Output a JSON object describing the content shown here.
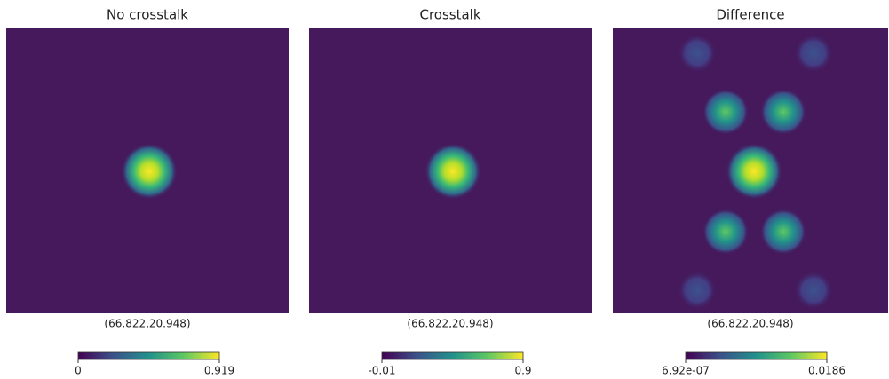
{
  "chart_data": [
    {
      "type": "heatmap",
      "title": "No crosstalk",
      "xlabel": "(66.822,20.948)",
      "clim": [
        0,
        0.919
      ],
      "cticks": [
        0,
        0.919
      ]
    },
    {
      "type": "heatmap",
      "title": "Crosstalk",
      "xlabel": "(66.822,20.948)",
      "clim": [
        -0.01,
        0.9
      ],
      "cticks": [
        -0.01,
        0.9
      ]
    },
    {
      "type": "heatmap",
      "title": "Difference",
      "xlabel": "(66.822,20.948)",
      "clim": [
        6.92e-07,
        0.0186
      ],
      "cticks": [
        {
          "value": 6.92e-07,
          "label": "6.92e-07"
        },
        0.0186
      ]
    }
  ]
}
